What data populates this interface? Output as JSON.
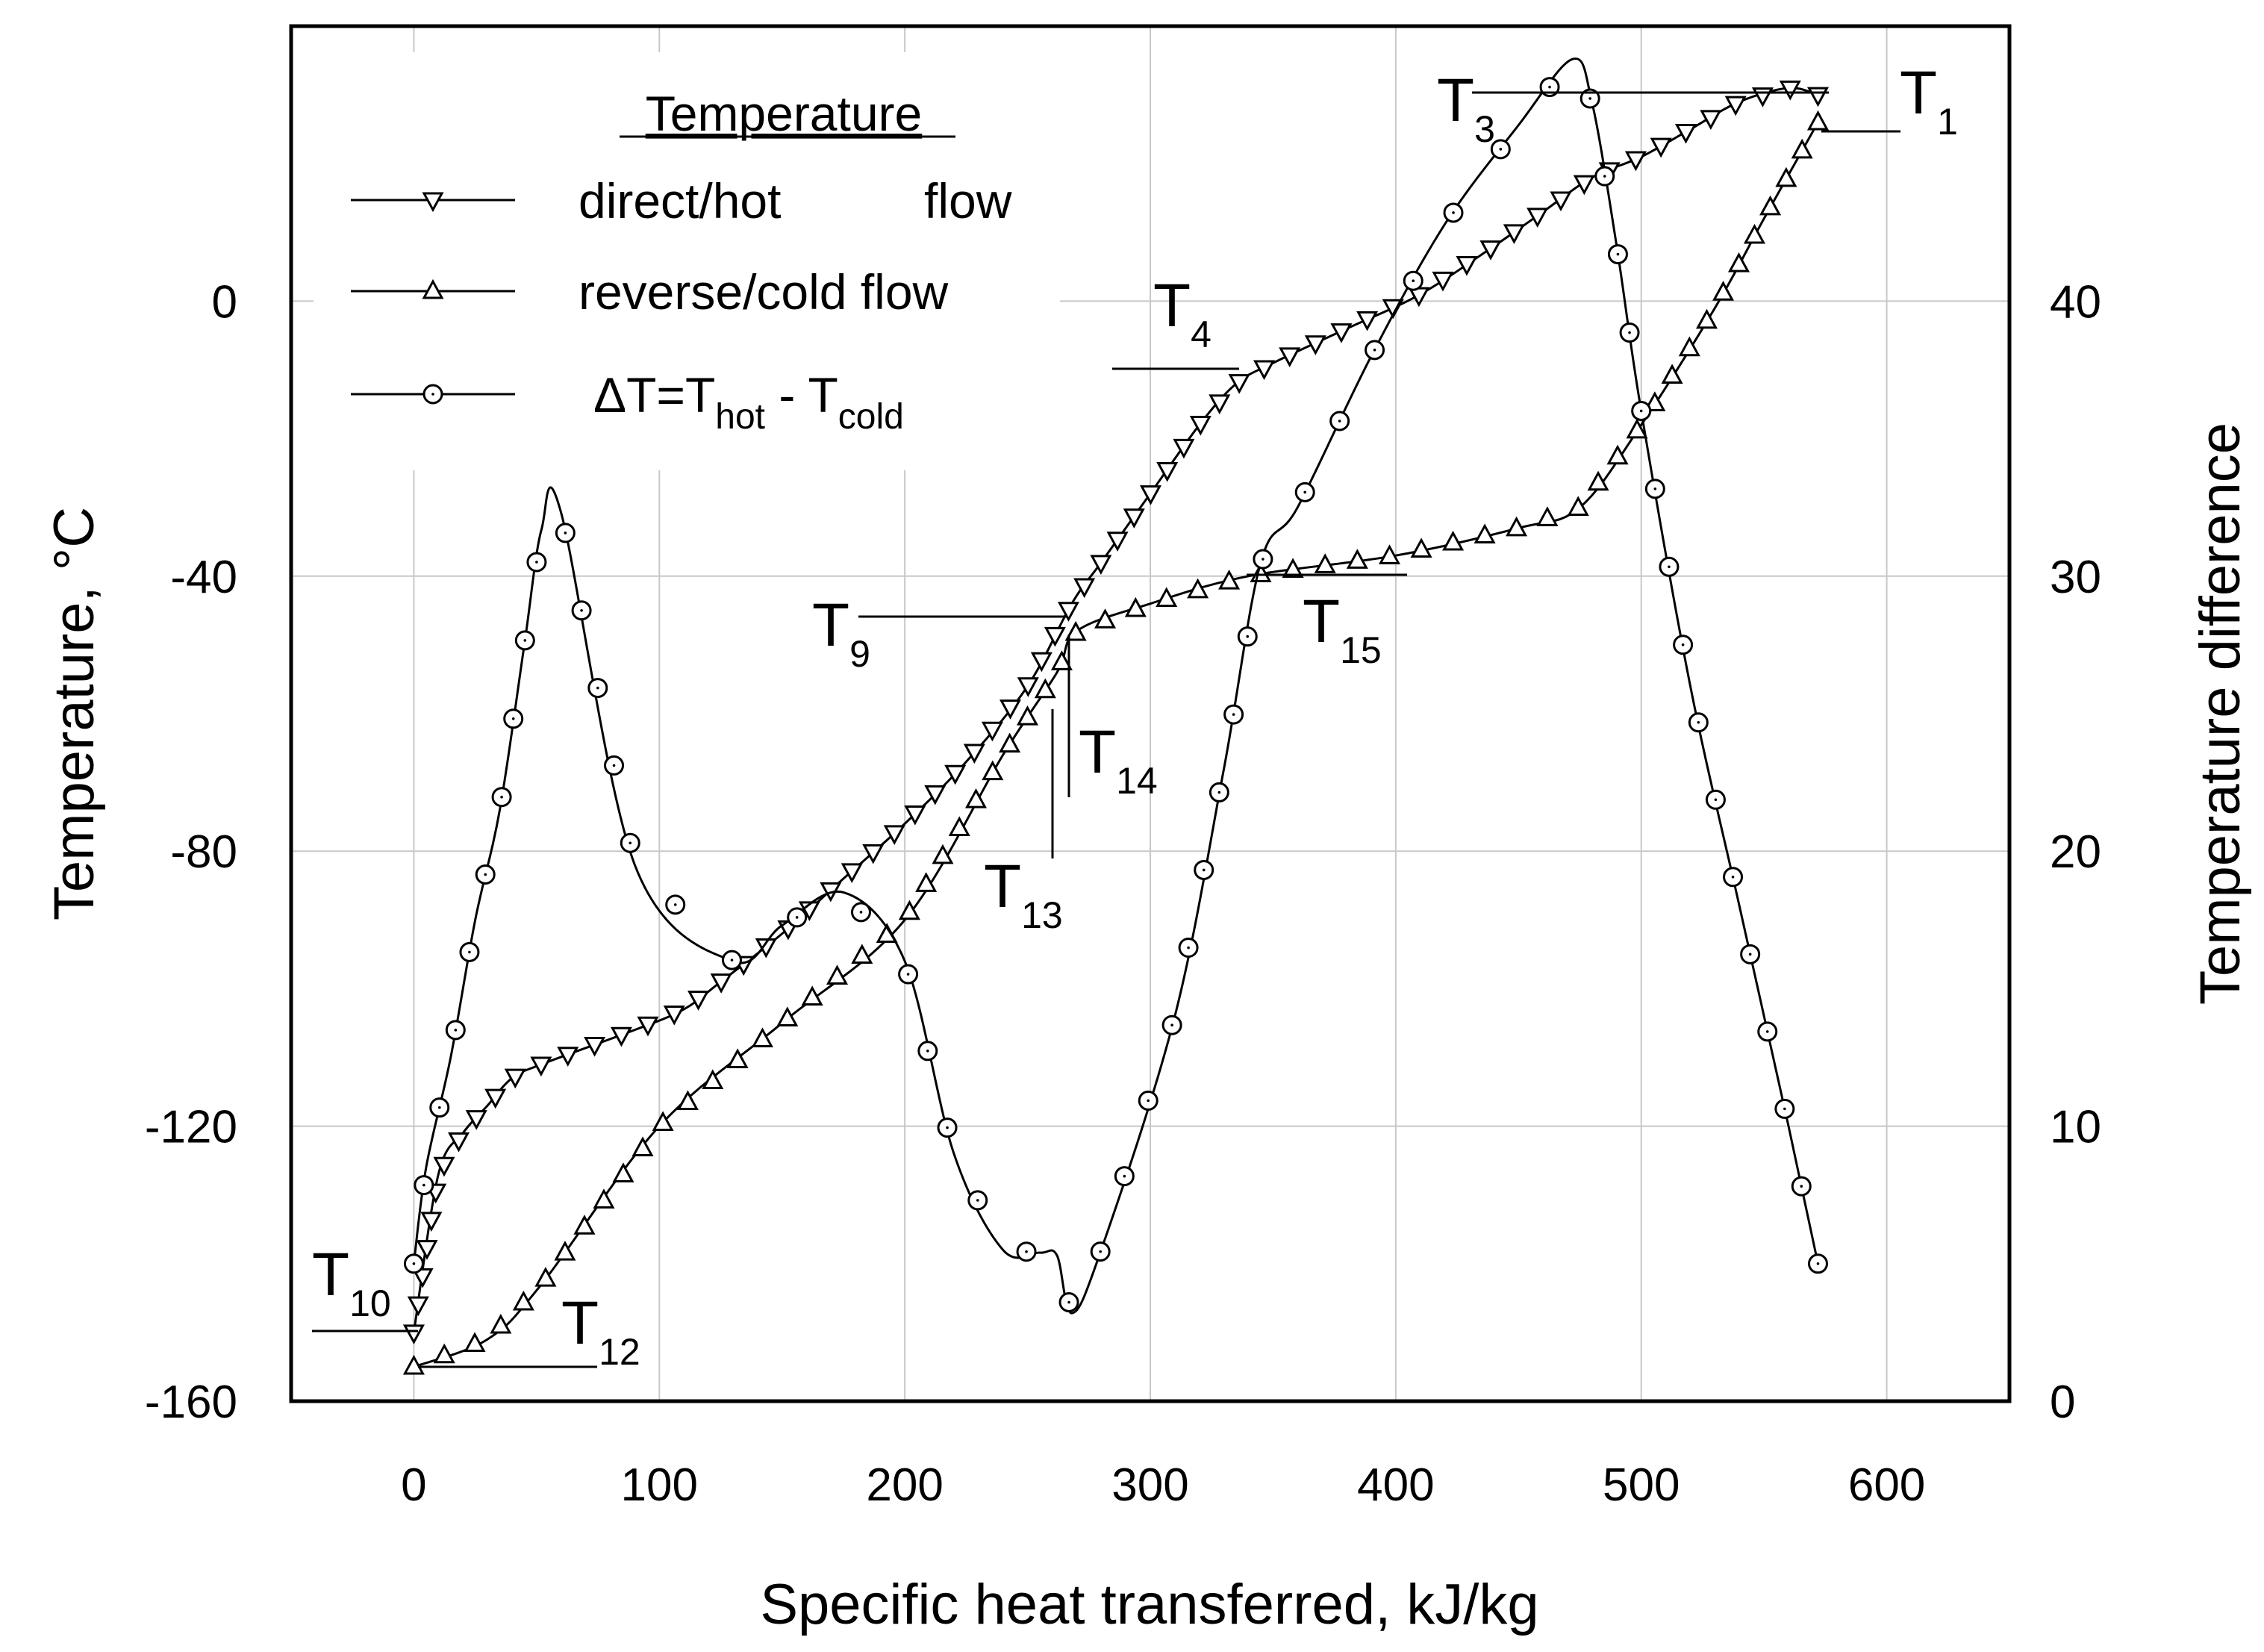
{
  "chart_data": {
    "type": "line",
    "xlabel": "Specific heat transferred, kJ/kg",
    "ylabel": "Temperature, °C",
    "y2label": "Temperature difference",
    "xlim": [
      -50,
      650
    ],
    "ylim": [
      -160,
      40
    ],
    "y2lim": [
      0,
      50
    ],
    "x_ticks": [
      0,
      100,
      200,
      300,
      400,
      500,
      600
    ],
    "x_tick_labels": [
      "0",
      "100",
      "200",
      "300",
      "400",
      "500",
      "600"
    ],
    "y_ticks": [
      -160,
      -120,
      -80,
      -40,
      0
    ],
    "y_tick_labels": [
      "-160",
      "-120",
      "-80",
      "-40",
      "0"
    ],
    "y2_ticks": [
      0,
      10,
      20,
      30,
      40
    ],
    "y2_tick_labels": [
      "0",
      "10",
      "20",
      "30",
      "40"
    ],
    "grid": true,
    "legend": {
      "title": "Temperature",
      "position": "top-left",
      "entries": [
        {
          "marker": "triangle-down",
          "parts": [
            "direct/hot",
            "flow"
          ]
        },
        {
          "marker": "triangle-up",
          "parts": [
            "reverse/cold flow"
          ]
        },
        {
          "marker": "circle",
          "parts": [
            "ΔT=T",
            "hot",
            " - T",
            "cold"
          ]
        }
      ]
    },
    "series": [
      {
        "name": "direct/hot flow",
        "axis": "left",
        "marker": "triangle-down",
        "points": [
          [
            0,
            -150
          ],
          [
            10,
            -127
          ],
          [
            20,
            -121
          ],
          [
            30,
            -117
          ],
          [
            40,
            -113
          ],
          [
            52,
            -111
          ],
          [
            90,
            -106
          ],
          [
            110,
            -103
          ],
          [
            125,
            -99
          ],
          [
            150,
            -92
          ],
          [
            175,
            -84
          ],
          [
            200,
            -76
          ],
          [
            225,
            -67
          ],
          [
            250,
            -56
          ],
          [
            268,
            -44
          ],
          [
            280,
            -38
          ],
          [
            300,
            -28
          ],
          [
            320,
            -18
          ],
          [
            335,
            -12
          ],
          [
            350,
            -9
          ],
          [
            380,
            -4
          ],
          [
            410,
            1
          ],
          [
            440,
            8
          ],
          [
            460,
            13
          ],
          [
            480,
            18
          ],
          [
            500,
            21
          ],
          [
            520,
            25
          ],
          [
            540,
            29
          ],
          [
            560,
            31
          ],
          [
            572,
            30
          ]
        ]
      },
      {
        "name": "reverse/cold flow",
        "axis": "left",
        "marker": "triangle-up",
        "points": [
          [
            0,
            -155
          ],
          [
            30,
            -151
          ],
          [
            52,
            -143
          ],
          [
            100,
            -120
          ],
          [
            150,
            -105
          ],
          [
            200,
            -90
          ],
          [
            240,
            -66
          ],
          [
            262,
            -54
          ],
          [
            270,
            -48
          ],
          [
            300,
            -44
          ],
          [
            340,
            -40
          ],
          [
            400,
            -37
          ],
          [
            450,
            -33
          ],
          [
            475,
            -30
          ],
          [
            500,
            -18
          ],
          [
            530,
            -1
          ],
          [
            550,
            12
          ],
          [
            572,
            26
          ]
        ]
      },
      {
        "name": "ΔT=Thot - Tcold",
        "axis": "right",
        "marker": "circle",
        "points": [
          [
            0,
            5
          ],
          [
            5,
            8.5
          ],
          [
            15,
            12.5
          ],
          [
            25,
            17.5
          ],
          [
            35,
            21.5
          ],
          [
            45,
            27.5
          ],
          [
            52,
            31.7
          ],
          [
            60,
            32.3
          ],
          [
            90,
            19.5
          ],
          [
            130,
            16
          ],
          [
            150,
            17.3
          ],
          [
            175,
            18.5
          ],
          [
            200,
            16
          ],
          [
            220,
            9
          ],
          [
            240,
            5.5
          ],
          [
            255,
            5.4
          ],
          [
            262,
            5.3
          ],
          [
            268,
            3.2
          ],
          [
            280,
            5.5
          ],
          [
            310,
            14
          ],
          [
            330,
            23
          ],
          [
            345,
            30.5
          ],
          [
            360,
            32.5
          ],
          [
            390,
            38
          ],
          [
            420,
            42.8
          ],
          [
            450,
            46.4
          ],
          [
            472,
            48.8
          ],
          [
            480,
            47.2
          ],
          [
            490,
            42
          ],
          [
            500,
            36
          ],
          [
            520,
            26
          ],
          [
            540,
            18
          ],
          [
            560,
            10
          ],
          [
            572,
            5
          ]
        ]
      }
    ],
    "annotations": [
      {
        "main": "T",
        "sub": "1"
      },
      {
        "main": "T",
        "sub": "3"
      },
      {
        "main": "T",
        "sub": "4"
      },
      {
        "main": "T",
        "sub": "9"
      },
      {
        "main": "T",
        "sub": "10"
      },
      {
        "main": "T",
        "sub": "12"
      },
      {
        "main": "T",
        "sub": "13"
      },
      {
        "main": "T",
        "sub": "14"
      },
      {
        "main": "T",
        "sub": "15"
      }
    ]
  }
}
